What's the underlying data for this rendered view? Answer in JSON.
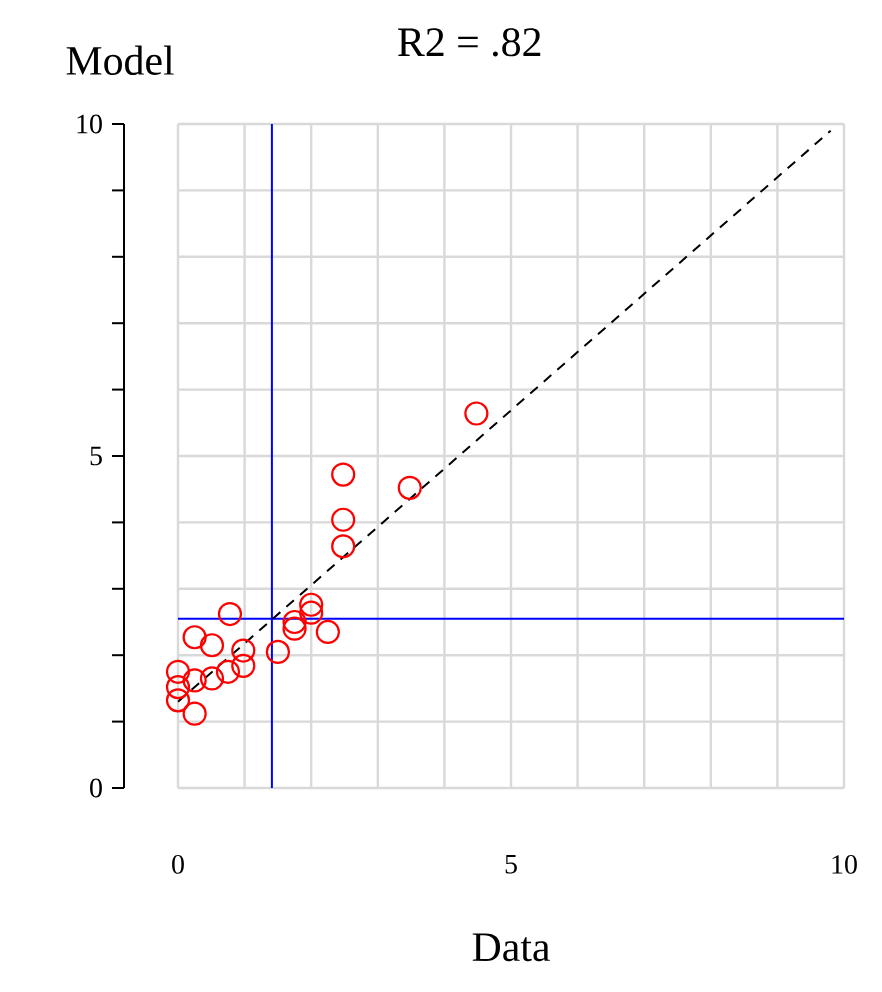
{
  "chart_data": {
    "type": "scatter",
    "title": "R2 = .82",
    "xlabel": "Data",
    "ylabel": "Model",
    "xlim": [
      0,
      10
    ],
    "ylim": [
      0,
      10
    ],
    "xticks": [
      0,
      {
        "value": 1,
        "label": null
      },
      {
        "value": 2,
        "label": null
      },
      {
        "value": 3,
        "label": null
      },
      {
        "value": 4,
        "label": null
      },
      5,
      {
        "value": 6,
        "label": null
      },
      {
        "value": 7,
        "label": null
      },
      {
        "value": 8,
        "label": null
      },
      {
        "value": 9,
        "label": null
      },
      10
    ],
    "yticks": [
      0,
      {
        "value": 1,
        "label": null
      },
      {
        "value": 2,
        "label": null
      },
      {
        "value": 3,
        "label": null
      },
      {
        "value": 4,
        "label": null
      },
      5,
      {
        "value": 6,
        "label": null
      },
      {
        "value": 7,
        "label": null
      },
      {
        "value": 8,
        "label": null
      },
      {
        "value": 9,
        "label": null
      },
      10
    ],
    "grid": true,
    "marker": "circle",
    "ref_lines": [
      {
        "axis": "x",
        "value": 1.41,
        "color": "#0000ff"
      },
      {
        "axis": "y",
        "value": 2.55,
        "color": "#0000ff"
      }
    ],
    "series": [
      {
        "type": "line",
        "color": "#000000",
        "line_style": "dashed",
        "marker": "none",
        "x": [
          0,
          9.8
        ],
        "values": [
          1.3,
          9.9
        ]
      },
      {
        "color": "#ff0000",
        "x": [
          4.48,
          2.48,
          3.48,
          2.48,
          2.48,
          2.0,
          2.0,
          1.75,
          1.75,
          2.25,
          0.78,
          0.25,
          0.51,
          0.98,
          0.98,
          1.5,
          0.75,
          0.51,
          0.25,
          0,
          0,
          0,
          0.25
        ],
        "values": [
          5.64,
          4.72,
          4.52,
          4.04,
          3.64,
          2.76,
          2.64,
          2.5,
          2.4,
          2.35,
          2.62,
          2.27,
          2.15,
          2.07,
          1.84,
          2.05,
          1.75,
          1.65,
          1.62,
          1.75,
          1.52,
          1.32,
          1.12
        ]
      }
    ]
  }
}
